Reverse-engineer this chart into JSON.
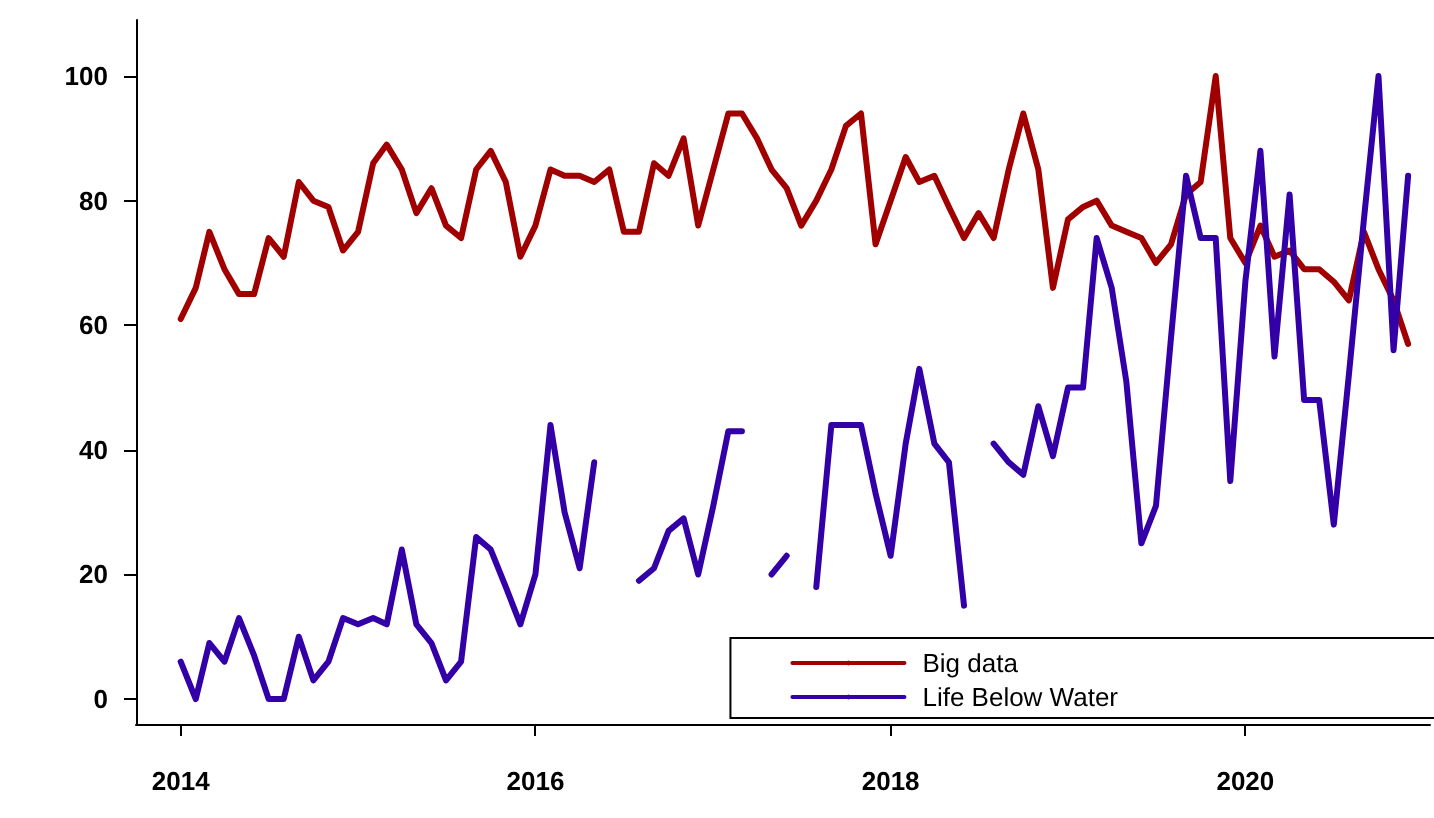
{
  "chart_data": {
    "type": "line",
    "x": [
      "2014-01",
      "2014-02",
      "2014-03",
      "2014-04",
      "2014-05",
      "2014-06",
      "2014-07",
      "2014-08",
      "2014-09",
      "2014-10",
      "2014-11",
      "2014-12",
      "2015-01",
      "2015-02",
      "2015-03",
      "2015-04",
      "2015-05",
      "2015-06",
      "2015-07",
      "2015-08",
      "2015-09",
      "2015-10",
      "2015-11",
      "2015-12",
      "2016-01",
      "2016-02",
      "2016-03",
      "2016-04",
      "2016-05",
      "2016-06",
      "2016-07",
      "2016-08",
      "2016-09",
      "2016-10",
      "2016-11",
      "2016-12",
      "2017-01",
      "2017-02",
      "2017-03",
      "2017-04",
      "2017-05",
      "2017-06",
      "2017-07",
      "2017-08",
      "2017-09",
      "2017-10",
      "2017-11",
      "2017-12",
      "2018-01",
      "2018-02",
      "2018-03",
      "2018-04",
      "2018-05",
      "2018-06",
      "2018-07",
      "2018-08",
      "2018-09",
      "2018-10",
      "2018-11",
      "2018-12",
      "2019-01",
      "2019-02",
      "2019-03",
      "2019-04",
      "2019-05",
      "2019-06",
      "2019-07",
      "2019-08",
      "2019-09",
      "2019-10",
      "2019-11",
      "2019-12",
      "2020-01",
      "2020-02",
      "2020-03",
      "2020-04",
      "2020-05",
      "2020-06",
      "2020-07",
      "2020-08",
      "2020-09",
      "2020-10",
      "2020-11",
      "2020-12"
    ],
    "series": [
      {
        "name": "Big data",
        "color": "#a00000",
        "values": [
          61,
          66,
          75,
          69,
          65,
          65,
          74,
          71,
          83,
          80,
          79,
          72,
          75,
          86,
          89,
          85,
          78,
          82,
          76,
          74,
          85,
          88,
          83,
          71,
          76,
          85,
          84,
          84,
          83,
          85,
          75,
          75,
          86,
          84,
          90,
          76,
          85,
          94,
          94,
          90,
          85,
          82,
          76,
          80,
          85,
          92,
          94,
          73,
          80,
          87,
          83,
          84,
          79,
          74,
          78,
          74,
          85,
          94,
          85,
          66,
          77,
          79,
          80,
          76,
          75,
          74,
          70,
          73,
          81,
          83,
          100,
          74,
          70,
          76,
          71,
          72,
          69,
          69,
          67,
          64,
          75,
          69,
          64,
          57
        ]
      },
      {
        "name": "Life Below Water",
        "color": "#3300a8",
        "values": [
          6,
          0,
          9,
          6,
          13,
          7,
          0,
          0,
          10,
          3,
          6,
          13,
          12,
          13,
          12,
          24,
          12,
          9,
          3,
          6,
          26,
          24,
          18,
          12,
          20,
          44,
          30,
          21,
          38,
          null,
          null,
          19,
          21,
          27,
          29,
          20,
          31,
          43,
          43,
          null,
          20,
          23,
          null,
          18,
          44,
          44,
          44,
          33,
          23,
          41,
          53,
          41,
          38,
          15,
          null,
          41,
          38,
          36,
          47,
          39,
          50,
          50,
          74,
          66,
          51,
          25,
          31,
          58,
          84,
          74,
          74,
          35,
          67,
          88,
          55,
          81,
          48,
          48,
          28,
          52,
          77,
          100,
          56,
          84
        ]
      }
    ],
    "xlim": [
      "2013-10",
      "2021-01-15"
    ],
    "xticks": [
      "2014",
      "2016",
      "2018",
      "2020"
    ],
    "ylim": [
      -4,
      109
    ],
    "yticks": [
      0,
      20,
      40,
      60,
      80,
      100
    ],
    "legend": "bottom right",
    "marker": "none",
    "line_style": "solid",
    "grid": false
  }
}
